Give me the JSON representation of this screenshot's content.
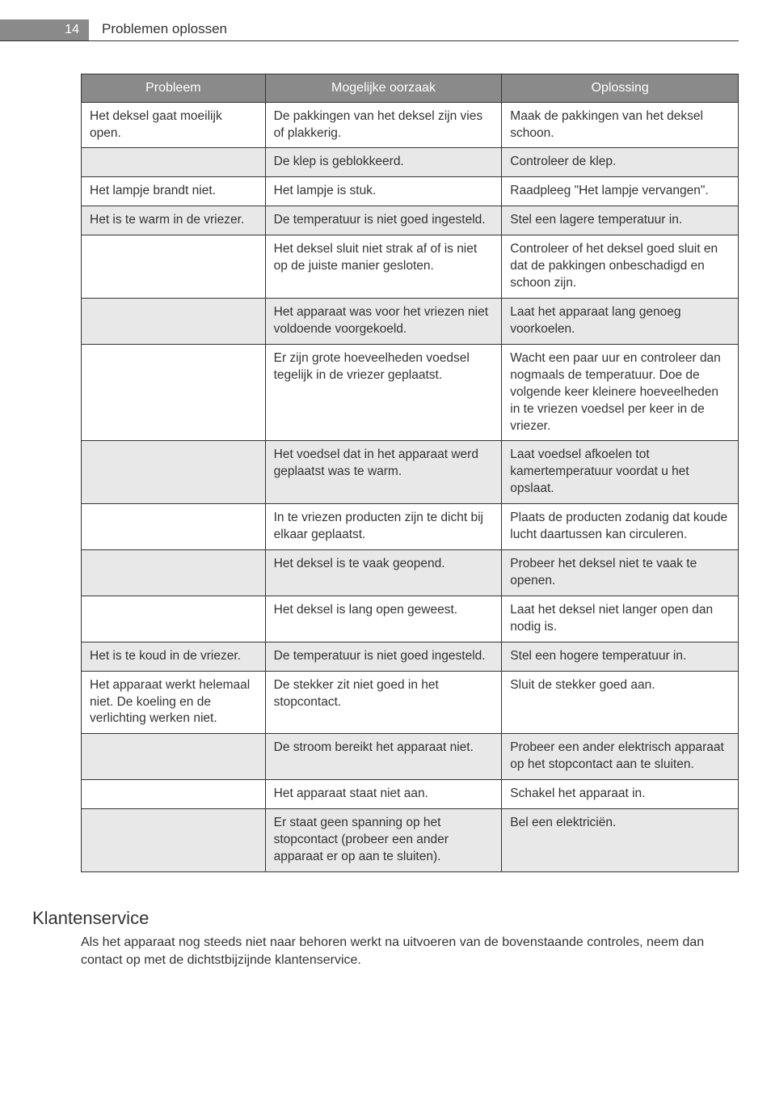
{
  "header": {
    "page_number": "14",
    "title": "Problemen oplossen"
  },
  "table": {
    "columns": [
      "Probleem",
      "Mogelijke oorzaak",
      "Oplossing"
    ],
    "col_widths_pct": [
      28,
      36,
      36
    ],
    "header_bg": "#8a8a8a",
    "header_fg": "#ffffff",
    "border_color": "#333333",
    "shaded_bg": "#e8e8e8",
    "font_size_pt": 11.5,
    "rows": [
      {
        "shaded": false,
        "cells": [
          "Het deksel gaat moeilijk open.",
          "De pakkingen van het deksel zijn vies of plakkerig.",
          "Maak de pakkingen van het deksel schoon."
        ]
      },
      {
        "shaded": true,
        "cells": [
          "",
          "De klep is geblokkeerd.",
          "Controleer de klep."
        ]
      },
      {
        "shaded": false,
        "cells": [
          "Het lampje brandt niet.",
          "Het lampje is stuk.",
          "Raadpleeg \"Het lampje vervangen\"."
        ]
      },
      {
        "shaded": true,
        "cells": [
          "Het is te warm in de vriezer.",
          "De temperatuur is niet goed ingesteld.",
          "Stel een lagere temperatuur in."
        ]
      },
      {
        "shaded": false,
        "cells": [
          "",
          "Het deksel sluit niet strak af of is niet op de juiste manier gesloten.",
          "Controleer of het deksel goed sluit en dat de pakkingen onbeschadigd en schoon zijn."
        ]
      },
      {
        "shaded": true,
        "cells": [
          "",
          "Het apparaat was voor het vriezen niet voldoende voorgekoeld.",
          "Laat het apparaat lang genoeg voorkoelen."
        ]
      },
      {
        "shaded": false,
        "cells": [
          "",
          "Er zijn grote hoeveelheden voedsel tegelijk in de vriezer geplaatst.",
          "Wacht een paar uur en controleer dan nogmaals de temperatuur. Doe de volgende keer kleinere hoeveelheden in te vriezen voedsel per keer in de vriezer."
        ]
      },
      {
        "shaded": true,
        "cells": [
          "",
          "Het voedsel dat in het apparaat werd geplaatst was te warm.",
          "Laat voedsel afkoelen tot kamertemperatuur voordat u het opslaat."
        ]
      },
      {
        "shaded": false,
        "cells": [
          "",
          "In te vriezen producten zijn te dicht bij elkaar geplaatst.",
          "Plaats de producten zodanig dat koude lucht daartussen kan circuleren."
        ]
      },
      {
        "shaded": true,
        "cells": [
          "",
          "Het deksel is te vaak geopend.",
          "Probeer het deksel niet te vaak te openen."
        ]
      },
      {
        "shaded": false,
        "cells": [
          "",
          "Het deksel is lang open geweest.",
          "Laat het deksel niet langer open dan nodig is."
        ]
      },
      {
        "shaded": true,
        "cells": [
          "Het is te koud in de vriezer.",
          "De temperatuur is niet goed ingesteld.",
          "Stel een hogere temperatuur in."
        ]
      },
      {
        "shaded": false,
        "cells": [
          "Het apparaat werkt helemaal niet. De koeling en de verlichting werken niet.",
          "De stekker zit niet goed in het stopcontact.",
          "Sluit de stekker goed aan."
        ]
      },
      {
        "shaded": true,
        "cells": [
          "",
          "De stroom bereikt het apparaat niet.",
          "Probeer een ander elektrisch apparaat op het stopcontact aan te sluiten."
        ]
      },
      {
        "shaded": false,
        "cells": [
          "",
          "Het apparaat staat niet aan.",
          "Schakel het apparaat in."
        ]
      },
      {
        "shaded": true,
        "cells": [
          "",
          "Er staat geen spanning op het stopcontact (probeer een ander apparaat er op aan te sluiten).",
          "Bel een elektriciën."
        ]
      }
    ]
  },
  "section": {
    "heading": "Klantenservice",
    "body": "Als het apparaat nog steeds niet naar behoren werkt na uitvoeren van de bovenstaande controles, neem dan contact op met de dichtstbijzijnde klantenservice."
  },
  "colors": {
    "page_bg": "#ffffff",
    "text": "#333333",
    "header_box_bg": "#8a8a8a",
    "header_box_fg": "#ffffff"
  }
}
